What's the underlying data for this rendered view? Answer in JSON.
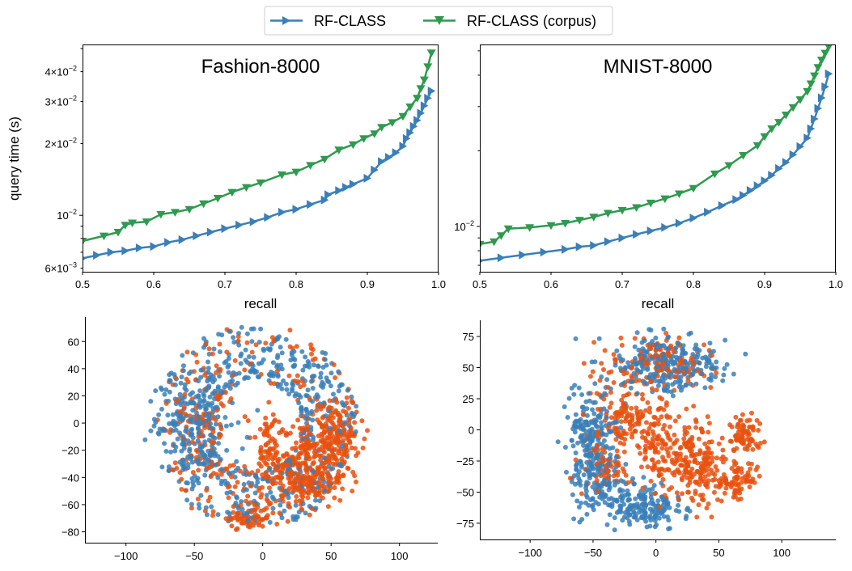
{
  "colors": {
    "rf": "#3a7fb8",
    "corpus": "#2f9a4f",
    "class_a": "#3a7fb8",
    "class_b": "#e8510f"
  },
  "legend": {
    "items": [
      "RF-CLASS",
      "RF-CLASS (corpus)"
    ]
  },
  "chart_data": [
    {
      "type": "line",
      "title": "Fashion-8000",
      "xlabel": "recall",
      "ylabel": "query time (s)",
      "xlim": [
        0.5,
        1.0
      ],
      "ylim": [
        0.0058,
        0.052
      ],
      "yscale": "log",
      "xticks": [
        "0.5",
        "0.6",
        "0.7",
        "0.8",
        "0.9",
        "1.0"
      ],
      "yticks": [
        {
          "v": 0.006,
          "base": "6",
          "exp": "−3"
        },
        {
          "v": 0.01,
          "base": "",
          "exp": "−2"
        },
        {
          "v": 0.02,
          "base": "2",
          "exp": "−2"
        },
        {
          "v": 0.03,
          "base": "3",
          "exp": "−2"
        },
        {
          "v": 0.04,
          "base": "4",
          "exp": "−2"
        }
      ],
      "series": [
        {
          "name": "RF-CLASS",
          "x": [
            0.5,
            0.52,
            0.54,
            0.56,
            0.58,
            0.6,
            0.62,
            0.64,
            0.66,
            0.68,
            0.7,
            0.72,
            0.74,
            0.76,
            0.78,
            0.8,
            0.82,
            0.84,
            0.845,
            0.86,
            0.87,
            0.88,
            0.9,
            0.91,
            0.92,
            0.93,
            0.94,
            0.95,
            0.955,
            0.96,
            0.965,
            0.97,
            0.975,
            0.98,
            0.985,
            0.99
          ],
          "y": [
            0.0066,
            0.0068,
            0.007,
            0.0071,
            0.0073,
            0.0074,
            0.0077,
            0.0079,
            0.0082,
            0.0085,
            0.0088,
            0.0091,
            0.0094,
            0.0098,
            0.0103,
            0.0106,
            0.0111,
            0.0116,
            0.0122,
            0.0127,
            0.0131,
            0.0135,
            0.0143,
            0.0155,
            0.0168,
            0.0175,
            0.0183,
            0.0195,
            0.021,
            0.0222,
            0.0236,
            0.025,
            0.0268,
            0.0288,
            0.031,
            0.0332
          ]
        },
        {
          "name": "RF-CLASS (corpus)",
          "x": [
            0.5,
            0.53,
            0.55,
            0.56,
            0.57,
            0.59,
            0.61,
            0.63,
            0.65,
            0.67,
            0.69,
            0.71,
            0.73,
            0.75,
            0.78,
            0.8,
            0.82,
            0.84,
            0.86,
            0.88,
            0.895,
            0.91,
            0.92,
            0.935,
            0.95,
            0.96,
            0.97,
            0.975,
            0.98,
            0.985,
            0.99
          ],
          "y": [
            0.0078,
            0.0082,
            0.0085,
            0.0091,
            0.0093,
            0.0094,
            0.0101,
            0.0103,
            0.0106,
            0.0112,
            0.0118,
            0.0125,
            0.0131,
            0.0137,
            0.0148,
            0.0152,
            0.0162,
            0.0172,
            0.0188,
            0.0198,
            0.021,
            0.022,
            0.0234,
            0.0245,
            0.026,
            0.0285,
            0.031,
            0.034,
            0.037,
            0.042,
            0.048
          ]
        }
      ]
    },
    {
      "type": "line",
      "title": "MNIST-8000",
      "xlabel": "recall",
      "ylabel": "",
      "xlim": [
        0.5,
        1.0
      ],
      "ylim": [
        0.0066,
        0.053
      ],
      "yscale": "log",
      "xticks": [
        "0.5",
        "0.6",
        "0.7",
        "0.8",
        "0.9",
        "1.0"
      ],
      "yticks": [
        {
          "v": 0.01,
          "base": "",
          "exp": "−2"
        }
      ],
      "series": [
        {
          "name": "RF-CLASS",
          "x": [
            0.5,
            0.53,
            0.56,
            0.59,
            0.62,
            0.64,
            0.66,
            0.68,
            0.7,
            0.72,
            0.74,
            0.76,
            0.78,
            0.8,
            0.82,
            0.84,
            0.86,
            0.87,
            0.88,
            0.89,
            0.9,
            0.91,
            0.92,
            0.93,
            0.94,
            0.95,
            0.96,
            0.965,
            0.97,
            0.975,
            0.98,
            0.985,
            0.99
          ],
          "y": [
            0.0073,
            0.0075,
            0.0077,
            0.0079,
            0.0081,
            0.0083,
            0.0084,
            0.0087,
            0.009,
            0.0093,
            0.0096,
            0.0099,
            0.0103,
            0.0108,
            0.0114,
            0.0121,
            0.0128,
            0.0133,
            0.0139,
            0.0145,
            0.0152,
            0.016,
            0.017,
            0.018,
            0.0193,
            0.0208,
            0.0225,
            0.0245,
            0.0268,
            0.0295,
            0.0325,
            0.036,
            0.0405
          ]
        },
        {
          "name": "RF-CLASS (corpus)",
          "x": [
            0.5,
            0.52,
            0.53,
            0.54,
            0.57,
            0.6,
            0.62,
            0.64,
            0.66,
            0.68,
            0.7,
            0.72,
            0.74,
            0.76,
            0.78,
            0.8,
            0.83,
            0.85,
            0.87,
            0.89,
            0.9,
            0.91,
            0.92,
            0.93,
            0.94,
            0.95,
            0.96,
            0.965,
            0.97,
            0.975,
            0.98,
            0.985,
            0.99
          ],
          "y": [
            0.0085,
            0.0087,
            0.0092,
            0.0098,
            0.0099,
            0.0101,
            0.0103,
            0.0106,
            0.0109,
            0.0113,
            0.0116,
            0.0119,
            0.0124,
            0.0129,
            0.0135,
            0.0142,
            0.0162,
            0.0175,
            0.0192,
            0.021,
            0.0228,
            0.0245,
            0.026,
            0.0278,
            0.0298,
            0.032,
            0.0345,
            0.037,
            0.0398,
            0.043,
            0.046,
            0.049,
            0.052
          ]
        }
      ]
    },
    {
      "type": "scatter",
      "title": "",
      "xlim": [
        -130,
        128
      ],
      "ylim": [
        -88,
        78
      ],
      "xticks": [
        "−100",
        "−50",
        "0",
        "50",
        "100"
      ],
      "yticks": [
        "−80",
        "−60",
        "−40",
        "−20",
        "0",
        "20",
        "40",
        "60"
      ],
      "seed": 17,
      "clusters": [
        {
          "cls": "a",
          "type": "ring",
          "cx": -5,
          "cy": -2,
          "r_in": 33,
          "r_out": 75,
          "a0": -158,
          "a1": 185,
          "n": 520
        },
        {
          "cls": "a",
          "type": "blob",
          "cx": -50,
          "cy": -5,
          "sx": 14,
          "sy": 18,
          "n": 170
        },
        {
          "cls": "b",
          "type": "ring",
          "cx": -5,
          "cy": -2,
          "r_in": 33,
          "r_out": 75,
          "a0": -158,
          "a1": 185,
          "n": 200
        },
        {
          "cls": "b",
          "type": "blob",
          "cx": -45,
          "cy": -5,
          "sx": 14,
          "sy": 18,
          "n": 90
        },
        {
          "cls": "b",
          "type": "blob",
          "cx": 50,
          "cy": -12,
          "sx": 12,
          "sy": 15,
          "n": 230
        },
        {
          "cls": "b",
          "type": "blob",
          "cx": 20,
          "cy": -30,
          "sx": 12,
          "sy": 16,
          "n": 150
        },
        {
          "cls": "b",
          "type": "blob",
          "cx": 35,
          "cy": -45,
          "sx": 12,
          "sy": 8,
          "n": 100
        },
        {
          "cls": "b",
          "type": "blob",
          "cx": 5,
          "cy": -18,
          "sx": 5,
          "sy": 12,
          "n": 55
        },
        {
          "cls": "b",
          "type": "blob",
          "cx": -10,
          "cy": -70,
          "sx": 8,
          "sy": 5,
          "n": 60
        }
      ]
    },
    {
      "type": "scatter",
      "title": "",
      "xlim": [
        -140,
        143
      ],
      "ylim": [
        -88,
        88
      ],
      "xticks": [
        "−100",
        "−50",
        "0",
        "50",
        "100"
      ],
      "yticks": [
        "−75",
        "−50",
        "−25",
        "0",
        "25",
        "50",
        "75"
      ],
      "seed": 41,
      "clusters": [
        {
          "cls": "a",
          "type": "blob",
          "cx": 10,
          "cy": 52,
          "sx": 22,
          "sy": 11,
          "n": 260
        },
        {
          "cls": "a",
          "type": "blob",
          "cx": -50,
          "cy": -10,
          "sx": 10,
          "sy": 22,
          "n": 230
        },
        {
          "cls": "a",
          "type": "blob",
          "cx": -10,
          "cy": -62,
          "sx": 14,
          "sy": 8,
          "n": 170
        },
        {
          "cls": "a",
          "type": "blob",
          "cx": -42,
          "cy": -45,
          "sx": 12,
          "sy": 10,
          "n": 70
        },
        {
          "cls": "b",
          "type": "blob",
          "cx": 0,
          "cy": 52,
          "sx": 22,
          "sy": 11,
          "n": 130
        },
        {
          "cls": "b",
          "type": "blob",
          "cx": -30,
          "cy": 10,
          "sx": 12,
          "sy": 14,
          "n": 120
        },
        {
          "cls": "b",
          "type": "blob",
          "cx": 0,
          "cy": -10,
          "sx": 8,
          "sy": 18,
          "n": 110
        },
        {
          "cls": "b",
          "type": "blob",
          "cx": 30,
          "cy": -28,
          "sx": 12,
          "sy": 16,
          "n": 200
        },
        {
          "cls": "b",
          "type": "blob",
          "cx": 70,
          "cy": -5,
          "sx": 7,
          "sy": 7,
          "n": 70
        },
        {
          "cls": "b",
          "type": "blob",
          "cx": 65,
          "cy": -40,
          "sx": 8,
          "sy": 7,
          "n": 80
        },
        {
          "cls": "b",
          "type": "blob",
          "cx": -40,
          "cy": -30,
          "sx": 10,
          "sy": 10,
          "n": 60
        }
      ]
    }
  ]
}
